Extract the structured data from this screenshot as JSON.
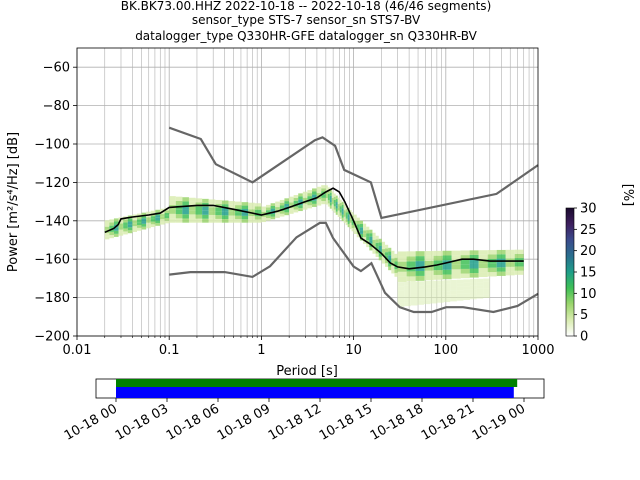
{
  "title_lines": [
    "BK.BK73.00.HHZ   2022-10-18 -- 2022-10-18  (46/46 segments)",
    "sensor_type STS-7 sensor_sn STS7-BV",
    "datalogger_type Q330HR-GFE datalogger_sn Q330HR-BV"
  ],
  "chart_data": {
    "type": "heatmap",
    "xlabel": "Period [s]",
    "ylabel": "Power [m²/s⁴/Hz] [dB]",
    "x_scale": "log",
    "xlim": [
      0.01,
      1000
    ],
    "ylim": [
      -200,
      -50
    ],
    "x_ticks": [
      0.01,
      0.1,
      1,
      10,
      100,
      1000
    ],
    "x_tick_labels": [
      "0.01",
      "0.1",
      "1",
      "10",
      "100",
      "1000"
    ],
    "y_ticks": [
      -200,
      -180,
      -160,
      -140,
      -120,
      -100,
      -80,
      -60
    ],
    "y_tick_labels": [
      "−200",
      "−180",
      "−160",
      "−140",
      "−120",
      "−100",
      "−80",
      "−60"
    ],
    "grid": true,
    "colorbar": {
      "label": "[%]",
      "range": [
        0,
        30
      ],
      "ticks": [
        0,
        5,
        10,
        15,
        20,
        25,
        30
      ],
      "colors": [
        "#ffffff",
        "#d9ecb0",
        "#9bd56d",
        "#3fbf56",
        "#1f9e89",
        "#2a6f8e",
        "#3b4b8c",
        "#3d1f5e",
        "#1a0a2e"
      ]
    },
    "mode_line": {
      "name": "mode",
      "color": "#000000",
      "points": [
        [
          0.02,
          -146
        ],
        [
          0.025,
          -144
        ],
        [
          0.028,
          -142
        ],
        [
          0.03,
          -139
        ],
        [
          0.04,
          -138
        ],
        [
          0.06,
          -137
        ],
        [
          0.08,
          -136
        ],
        [
          0.1,
          -133
        ],
        [
          0.2,
          -132
        ],
        [
          0.3,
          -132
        ],
        [
          0.5,
          -134
        ],
        [
          0.8,
          -136
        ],
        [
          1.0,
          -137
        ],
        [
          1.5,
          -135
        ],
        [
          2.0,
          -133
        ],
        [
          3.0,
          -130
        ],
        [
          4.0,
          -128
        ],
        [
          5.0,
          -125
        ],
        [
          6.0,
          -123
        ],
        [
          7.0,
          -125
        ],
        [
          8.0,
          -130
        ],
        [
          10.0,
          -140
        ],
        [
          12.0,
          -149
        ],
        [
          15.0,
          -152
        ],
        [
          20.0,
          -157
        ],
        [
          25.0,
          -162
        ],
        [
          30.0,
          -164
        ],
        [
          40.0,
          -165
        ],
        [
          60.0,
          -164
        ],
        [
          80.0,
          -163
        ],
        [
          100.0,
          -162
        ],
        [
          150.0,
          -160
        ],
        [
          200.0,
          -160
        ],
        [
          300.0,
          -161
        ],
        [
          400.0,
          -161
        ],
        [
          700.0,
          -161
        ]
      ]
    },
    "noise_models": [
      {
        "name": "high noise model",
        "color": "#666666",
        "points": [
          [
            0.1,
            -91.5
          ],
          [
            0.22,
            -97.4
          ],
          [
            0.32,
            -110.5
          ],
          [
            0.8,
            -120
          ],
          [
            3.8,
            -98
          ],
          [
            4.6,
            -96.5
          ],
          [
            6.3,
            -101
          ],
          [
            7.9,
            -113.5
          ],
          [
            15.4,
            -120
          ],
          [
            20,
            -138.5
          ],
          [
            354.8,
            -126
          ],
          [
            1000,
            -111
          ]
        ]
      },
      {
        "name": "low noise model",
        "color": "#666666",
        "points": [
          [
            0.1,
            -168
          ],
          [
            0.17,
            -166.7
          ],
          [
            0.4,
            -166.7
          ],
          [
            0.8,
            -169.2
          ],
          [
            1.24,
            -163.7
          ],
          [
            2.4,
            -148.6
          ],
          [
            4.3,
            -141.1
          ],
          [
            5.0,
            -141.1
          ],
          [
            6.0,
            -149
          ],
          [
            10.0,
            -163.8
          ],
          [
            12.0,
            -166.2
          ],
          [
            15.6,
            -162.1
          ],
          [
            21.9,
            -177.5
          ],
          [
            31.6,
            -185
          ],
          [
            45,
            -187.5
          ],
          [
            70,
            -187.5
          ],
          [
            101,
            -185
          ],
          [
            154,
            -185
          ],
          [
            328,
            -187.5
          ],
          [
            600,
            -184.4
          ],
          [
            1000,
            -178
          ]
        ]
      }
    ],
    "spread_bands": [
      {
        "period": [
          0.02,
          0.1
        ],
        "low": [
          -150,
          -141
        ],
        "high": [
          -140,
          -133
        ]
      },
      {
        "period": [
          0.1,
          1.0
        ],
        "low": [
          -141,
          -141
        ],
        "high": [
          -127,
          -131
        ]
      },
      {
        "period": [
          1.0,
          5.0
        ],
        "low": [
          -141,
          -131
        ],
        "high": [
          -133,
          -121
        ]
      },
      {
        "period": [
          5.0,
          10.0
        ],
        "low": [
          -131,
          -146
        ],
        "high": [
          -121,
          -136
        ]
      },
      {
        "period": [
          10.0,
          30.0
        ],
        "low": [
          -146,
          -170
        ],
        "high": [
          -136,
          -158
        ]
      },
      {
        "period": [
          30.0,
          700.0
        ],
        "low": [
          -172,
          -168
        ],
        "high": [
          -156,
          -155
        ]
      },
      {
        "period": [
          30.0,
          300.0
        ],
        "low": [
          -185,
          -180
        ],
        "high": [
          -172,
          -170
        ]
      }
    ],
    "timeline": {
      "tick_labels": [
        "10-18 00",
        "10-18 03",
        "10-18 06",
        "10-18 09",
        "10-18 12",
        "10-18 15",
        "10-18 18",
        "10-18 21",
        "10-19 00"
      ],
      "data_bar_color": "#008000",
      "psd_bar_color": "#0000ff",
      "data_coverage_hours": [
        0,
        23.6
      ],
      "psd_coverage_hours": [
        0,
        23.4
      ]
    }
  }
}
